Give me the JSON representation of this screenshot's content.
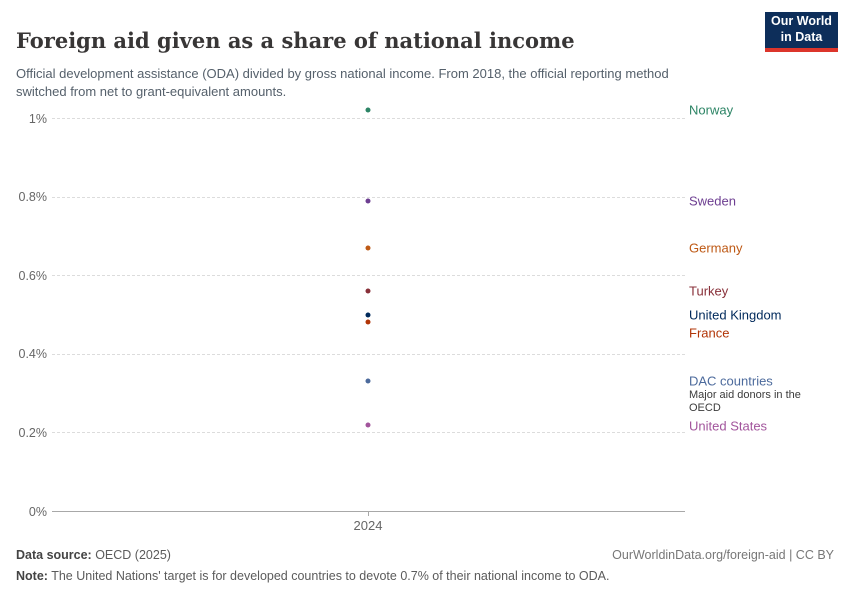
{
  "header": {
    "title": "Foreign aid given as a share of national income",
    "subtitle": "Official development assistance (ODA) divided by gross national income. From 2018, the official reporting method switched from net to grant-equivalent amounts."
  },
  "logo": {
    "line1": "Our World",
    "line2": "in Data",
    "background": "#0d2e5a",
    "accent": "#dc352b"
  },
  "chart_data": {
    "type": "scatter",
    "title": "Foreign aid given as a share of national income",
    "xlabel": "",
    "ylabel": "",
    "x": [
      2024
    ],
    "x_tick_label": "2024",
    "ylim": [
      0,
      1.05
    ],
    "grid": true,
    "legend_position": "right-labels",
    "yticks": [
      {
        "value": 1.0,
        "label": "1%"
      },
      {
        "value": 0.8,
        "label": "0.8%"
      },
      {
        "value": 0.6,
        "label": "0.6%"
      },
      {
        "value": 0.4,
        "label": "0.4%"
      },
      {
        "value": 0.2,
        "label": "0.2%"
      },
      {
        "value": 0.0,
        "label": "0%"
      }
    ],
    "series": [
      {
        "name": "Norway",
        "year": 2024,
        "value": 1.02,
        "color": "#2c8465"
      },
      {
        "name": "Sweden",
        "year": 2024,
        "value": 0.79,
        "color": "#6d3e91"
      },
      {
        "name": "Germany",
        "year": 2024,
        "value": 0.67,
        "color": "#be5915"
      },
      {
        "name": "Turkey",
        "year": 2024,
        "value": 0.56,
        "color": "#883039"
      },
      {
        "name": "United Kingdom",
        "year": 2024,
        "value": 0.5,
        "color": "#00295b"
      },
      {
        "name": "France",
        "year": 2024,
        "value": 0.48,
        "color": "#b13507"
      },
      {
        "name": "DAC countries",
        "year": 2024,
        "value": 0.33,
        "color": "#4c6a9c",
        "note": "Major aid donors in the OECD"
      },
      {
        "name": "United States",
        "year": 2024,
        "value": 0.22,
        "color": "#a2559c"
      }
    ]
  },
  "footer": {
    "source_label": "Data source:",
    "source_value": " OECD (2025)",
    "credit": "OurWorldinData.org/foreign-aid | CC BY",
    "note_label": "Note:",
    "note_value": " The United Nations' target is for developed countries to devote 0.7% of their national income to ODA."
  }
}
